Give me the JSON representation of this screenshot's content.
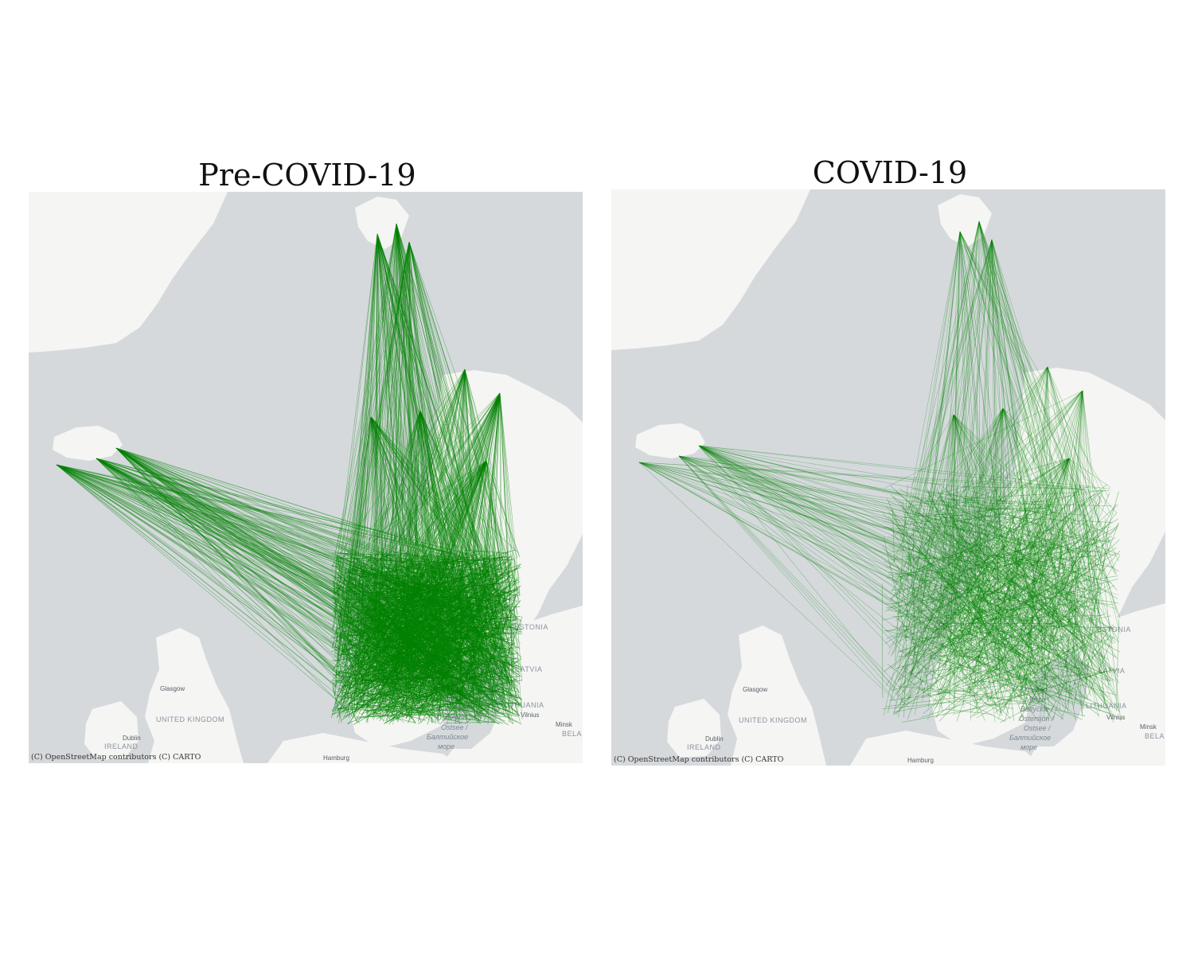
{
  "figure": {
    "panels": [
      {
        "title": "Pre-COVID-19",
        "attribution": "(C) OpenStreetMap contributors (C) CARTO",
        "edge_color": "#008000",
        "line_density": "high"
      },
      {
        "title": "COVID-19",
        "attribution": "(C) OpenStreetMap contributors (C) CARTO",
        "edge_color": "#008000",
        "line_density": "lower"
      }
    ]
  },
  "basemap": {
    "water_color": "#d5d9dc",
    "land_color": "#f5f5f3",
    "labels": {
      "uk": "UNITED KINGDOM",
      "ireland": "IRELAND",
      "estonia": "ESTONIA",
      "latvia": "LATVIA",
      "lithuania": "LITHUANIA",
      "glasgow": "Glasgow",
      "dublin": "Dublin",
      "hamburg": "Hamburg",
      "vilnius": "Vilnius",
      "minsk": "Minsk",
      "bela": "BELA",
      "sea1": "Itämeri /",
      "sea2": "Morze",
      "sea3": "Bałtyckie /",
      "sea4": "Östersjön /",
      "sea5": "Ostsee /",
      "sea6": "Балтийское",
      "sea7": "море"
    }
  }
}
